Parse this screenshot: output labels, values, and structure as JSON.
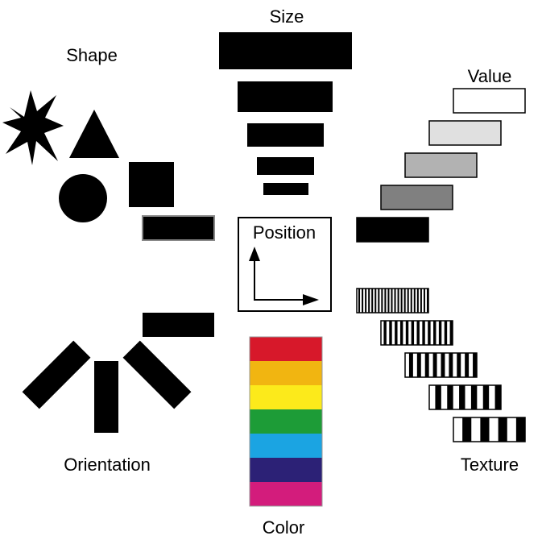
{
  "labels": {
    "size": "Size",
    "shape": "Shape",
    "value": "Value",
    "position": "Position",
    "orientation": "Orientation",
    "texture": "Texture",
    "color": "Color"
  },
  "icons": {
    "shape": [
      "star-icon",
      "triangle-icon",
      "square-icon",
      "circle-icon"
    ],
    "position": [
      "arrow-up-icon",
      "arrow-right-icon"
    ]
  },
  "value_grays": [
    "#ffffff",
    "#e0e0e0",
    "#b2b2b2",
    "#808080",
    "#000000"
  ],
  "color_swatches": [
    "#d7182a",
    "#f1b511",
    "#fcea1b",
    "#1d9c37",
    "#1ba4e2",
    "#2c2176",
    "#d31c7c"
  ],
  "texture_stripe_counts": [
    22,
    13,
    9,
    6,
    4
  ]
}
